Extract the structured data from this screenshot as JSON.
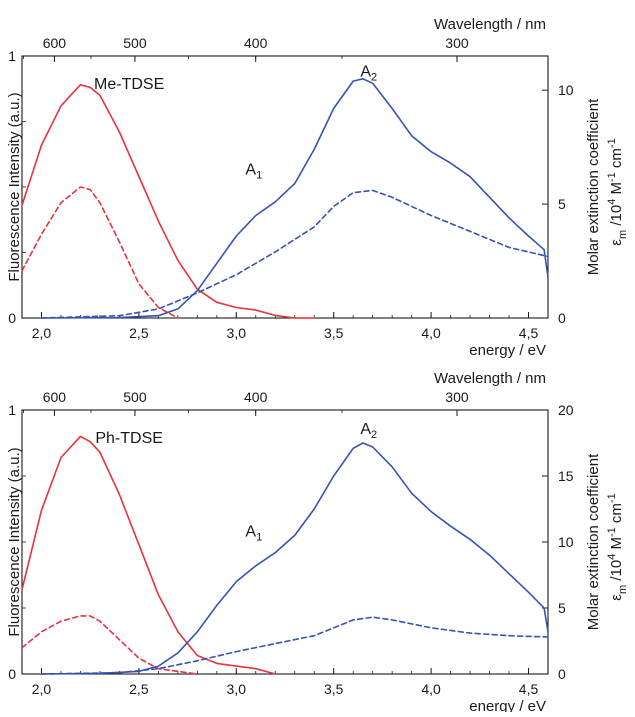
{
  "colors": {
    "emission": "#e8323c",
    "absorption": "#3553b3",
    "axis": "#1a1a1a"
  },
  "chart_data": [
    {
      "type": "line",
      "panel_label": "Me-TDSE",
      "xlabel": "energy / eV",
      "ylabel_left": "Fluorescence Intensity (a.u.)",
      "ylabel_right_main": "Molar extinction coefficient",
      "ylabel_right_unit": "ε_m /10^4 M^-1 cm^-1",
      "top_axis_label": "Wavelength / nm",
      "xlim": [
        1.9,
        4.6
      ],
      "ylim_left": [
        0,
        1
      ],
      "ylim_right": [
        0,
        11.5
      ],
      "x_ticks": [
        "2,0",
        "2,5",
        "3,0",
        "3,5",
        "4,0",
        "4,5"
      ],
      "x_tick_values": [
        2.0,
        2.5,
        3.0,
        3.5,
        4.0,
        4.5
      ],
      "left_ticks": [
        "0",
        "1"
      ],
      "left_tick_values": [
        0,
        1
      ],
      "right_ticks": [
        "0",
        "5",
        "10"
      ],
      "right_tick_values": [
        0,
        5,
        10
      ],
      "top_ticks": [
        "600",
        "500",
        "400",
        "300"
      ],
      "top_tick_values_nm": [
        600,
        500,
        400,
        300
      ],
      "annotations": [
        {
          "text": "A",
          "sub": "1",
          "x": 3.09,
          "y": 6.3
        },
        {
          "text": "A",
          "sub": "2",
          "x": 3.68,
          "y": 10.6
        }
      ],
      "series": [
        {
          "axis": "left",
          "style": "solid",
          "color": "emission",
          "x": [
            1.9,
            2.0,
            2.1,
            2.2,
            2.25,
            2.3,
            2.4,
            2.5,
            2.6,
            2.7,
            2.8,
            2.9,
            3.0,
            3.1,
            3.2,
            3.3,
            3.4
          ],
          "y": [
            0.43,
            0.66,
            0.81,
            0.89,
            0.88,
            0.85,
            0.71,
            0.54,
            0.37,
            0.22,
            0.11,
            0.06,
            0.04,
            0.03,
            0.01,
            0.0,
            0.0
          ]
        },
        {
          "axis": "left",
          "style": "dashed",
          "color": "emission",
          "x": [
            1.9,
            2.0,
            2.1,
            2.2,
            2.25,
            2.3,
            2.4,
            2.5,
            2.6,
            2.7
          ],
          "y": [
            0.18,
            0.32,
            0.44,
            0.5,
            0.49,
            0.44,
            0.29,
            0.13,
            0.04,
            0.0
          ]
        },
        {
          "axis": "right",
          "style": "solid",
          "color": "absorption",
          "x": [
            2.0,
            2.4,
            2.6,
            2.7,
            2.8,
            2.9,
            3.0,
            3.1,
            3.2,
            3.3,
            3.4,
            3.5,
            3.6,
            3.65,
            3.7,
            3.8,
            3.9,
            4.0,
            4.1,
            4.2,
            4.3,
            4.4,
            4.5,
            4.58,
            4.6
          ],
          "y": [
            0.0,
            0.02,
            0.1,
            0.4,
            1.2,
            2.4,
            3.6,
            4.5,
            5.1,
            5.9,
            7.4,
            9.2,
            10.4,
            10.5,
            10.3,
            9.2,
            8.0,
            7.3,
            6.8,
            6.2,
            5.3,
            4.4,
            3.6,
            3.0,
            1.8
          ]
        },
        {
          "axis": "right",
          "style": "dashed",
          "color": "absorption",
          "x": [
            2.0,
            2.4,
            2.6,
            2.8,
            3.0,
            3.2,
            3.4,
            3.5,
            3.6,
            3.7,
            3.8,
            4.0,
            4.2,
            4.4,
            4.6
          ],
          "y": [
            0.0,
            0.1,
            0.4,
            1.1,
            1.9,
            2.9,
            4.0,
            4.9,
            5.5,
            5.6,
            5.3,
            4.5,
            3.8,
            3.1,
            2.7
          ]
        }
      ]
    },
    {
      "type": "line",
      "panel_label": "Ph-TDSE",
      "xlabel": "energy / eV",
      "ylabel_left": "Fluorescence Intensity (a.u.)",
      "ylabel_right_main": "Molar extinction coefficient",
      "ylabel_right_unit": "ε_m /10^4 M^-1 cm^-1",
      "top_axis_label": "Wavelength / nm",
      "xlim": [
        1.9,
        4.6
      ],
      "ylim_left": [
        0,
        1
      ],
      "ylim_right": [
        0,
        20
      ],
      "x_ticks": [
        "2,0",
        "2,5",
        "3,0",
        "3,5",
        "4,0",
        "4,5"
      ],
      "x_tick_values": [
        2.0,
        2.5,
        3.0,
        3.5,
        4.0,
        4.5
      ],
      "left_ticks": [
        "0",
        "1"
      ],
      "left_tick_values": [
        0,
        1
      ],
      "right_ticks": [
        "0",
        "5",
        "10",
        "15",
        "20"
      ],
      "right_tick_values": [
        0,
        5,
        10,
        15,
        20
      ],
      "top_ticks": [
        "600",
        "500",
        "400",
        "300"
      ],
      "top_tick_values_nm": [
        600,
        500,
        400,
        300
      ],
      "annotations": [
        {
          "text": "A",
          "sub": "1",
          "x": 3.09,
          "y": 10.4
        },
        {
          "text": "A",
          "sub": "2",
          "x": 3.68,
          "y": 18.2
        }
      ],
      "series": [
        {
          "axis": "left",
          "style": "solid",
          "color": "emission",
          "x": [
            1.9,
            2.0,
            2.1,
            2.2,
            2.25,
            2.3,
            2.4,
            2.5,
            2.6,
            2.7,
            2.8,
            2.9,
            3.0,
            3.1,
            3.2
          ],
          "y": [
            0.32,
            0.62,
            0.82,
            0.9,
            0.88,
            0.84,
            0.68,
            0.49,
            0.3,
            0.16,
            0.07,
            0.04,
            0.03,
            0.02,
            0.0
          ]
        },
        {
          "axis": "left",
          "style": "dashed",
          "color": "emission",
          "x": [
            1.9,
            2.0,
            2.1,
            2.2,
            2.25,
            2.3,
            2.4,
            2.5,
            2.6,
            2.7,
            2.8
          ],
          "y": [
            0.1,
            0.16,
            0.2,
            0.22,
            0.22,
            0.2,
            0.13,
            0.06,
            0.02,
            0.01,
            0.0
          ]
        },
        {
          "axis": "right",
          "style": "solid",
          "color": "absorption",
          "x": [
            2.0,
            2.3,
            2.5,
            2.6,
            2.7,
            2.8,
            2.9,
            3.0,
            3.1,
            3.2,
            3.3,
            3.4,
            3.5,
            3.6,
            3.65,
            3.7,
            3.8,
            3.9,
            4.0,
            4.1,
            4.2,
            4.3,
            4.4,
            4.5,
            4.58,
            4.6
          ],
          "y": [
            0.0,
            0.05,
            0.2,
            0.6,
            1.6,
            3.2,
            5.2,
            7.0,
            8.2,
            9.2,
            10.5,
            12.5,
            15.0,
            17.1,
            17.5,
            17.2,
            15.7,
            13.7,
            12.3,
            11.2,
            10.2,
            9.0,
            7.6,
            6.2,
            5.0,
            3.2
          ]
        },
        {
          "axis": "right",
          "style": "dashed",
          "color": "absorption",
          "x": [
            2.0,
            2.4,
            2.6,
            2.8,
            3.0,
            3.2,
            3.4,
            3.5,
            3.6,
            3.7,
            3.8,
            4.0,
            4.2,
            4.4,
            4.6
          ],
          "y": [
            0.0,
            0.1,
            0.4,
            1.0,
            1.7,
            2.3,
            2.9,
            3.5,
            4.1,
            4.3,
            4.1,
            3.5,
            3.1,
            2.9,
            2.8
          ]
        }
      ]
    }
  ]
}
